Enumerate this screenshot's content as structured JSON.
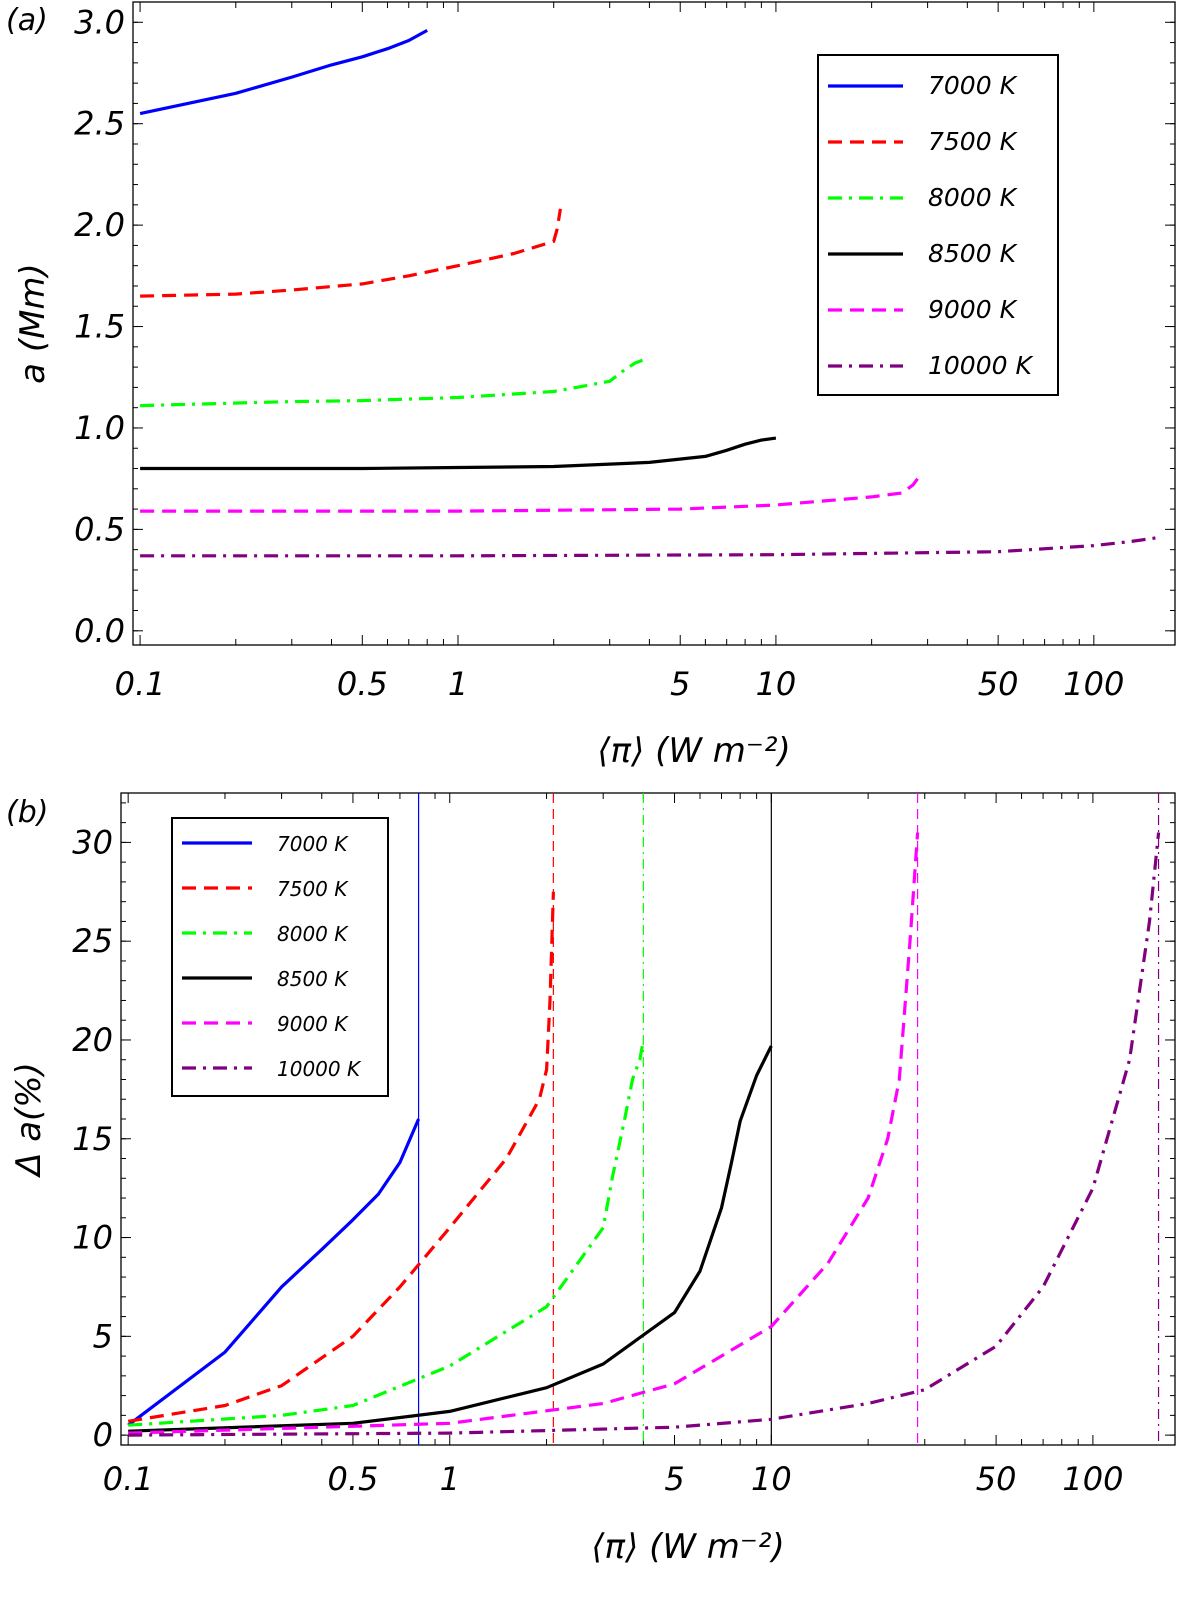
{
  "figure": {
    "background": "#ffffff"
  },
  "series_styles": [
    {
      "name": "7000 K",
      "color": "#0000ff",
      "dash": "solid"
    },
    {
      "name": "7500 K",
      "color": "#ff0000",
      "dash": "dashed"
    },
    {
      "name": "8000 K",
      "color": "#00ff00",
      "dash": "dashdot"
    },
    {
      "name": "8500 K",
      "color": "#000000",
      "dash": "solid"
    },
    {
      "name": "9000 K",
      "color": "#ff00ff",
      "dash": "dashed"
    },
    {
      "name": "10000 K",
      "color": "#800080",
      "dash": "dashdot"
    }
  ],
  "chart_data": [
    {
      "panel": "(a)",
      "type": "line",
      "xlabel": "⟨π⟩ (W m⁻²)",
      "ylabel": "a (Mm)",
      "xscale": "log",
      "xlim": [
        0.095,
        180
      ],
      "ylim": [
        -0.07,
        3.1
      ],
      "xticks": [
        {
          "value": 0.1,
          "label": "0.1"
        },
        {
          "value": 0.5,
          "label": "0.5"
        },
        {
          "value": 1,
          "label": "1"
        },
        {
          "value": 5,
          "label": "5"
        },
        {
          "value": 10,
          "label": "10"
        },
        {
          "value": 50,
          "label": "50"
        },
        {
          "value": 100,
          "label": "100"
        }
      ],
      "yticks": [
        {
          "value": 0.0,
          "label": "0.0"
        },
        {
          "value": 0.5,
          "label": "0.5"
        },
        {
          "value": 1.0,
          "label": "1.0"
        },
        {
          "value": 1.5,
          "label": "1.5"
        },
        {
          "value": 2.0,
          "label": "2.0"
        },
        {
          "value": 2.5,
          "label": "2.5"
        },
        {
          "value": 3.0,
          "label": "3.0"
        }
      ],
      "legend_position": "top-right",
      "series": [
        {
          "name": "7000 K",
          "x": [
            0.1,
            0.2,
            0.3,
            0.4,
            0.5,
            0.6,
            0.7,
            0.8
          ],
          "y": [
            2.55,
            2.65,
            2.73,
            2.79,
            2.83,
            2.87,
            2.91,
            2.96
          ]
        },
        {
          "name": "7500 K",
          "x": [
            0.1,
            0.2,
            0.3,
            0.5,
            0.7,
            1.0,
            1.5,
            2.0,
            2.05,
            2.1
          ],
          "y": [
            1.65,
            1.66,
            1.68,
            1.71,
            1.75,
            1.8,
            1.86,
            1.92,
            1.98,
            2.08
          ]
        },
        {
          "name": "8000 K",
          "x": [
            0.1,
            0.3,
            0.5,
            1.0,
            2.0,
            3.0,
            3.3,
            3.6,
            3.9
          ],
          "y": [
            1.11,
            1.13,
            1.135,
            1.15,
            1.18,
            1.23,
            1.28,
            1.32,
            1.34
          ]
        },
        {
          "name": "8500 K",
          "x": [
            0.1,
            0.5,
            1.0,
            2.0,
            4.0,
            6.0,
            7.0,
            8.0,
            9.0,
            10.0
          ],
          "y": [
            0.8,
            0.8,
            0.805,
            0.81,
            0.83,
            0.86,
            0.89,
            0.92,
            0.94,
            0.95
          ]
        },
        {
          "name": "9000 K",
          "x": [
            0.1,
            1.0,
            5.0,
            10.0,
            20.0,
            25.0,
            27.0,
            28.5
          ],
          "y": [
            0.59,
            0.59,
            0.6,
            0.62,
            0.66,
            0.68,
            0.72,
            0.77
          ]
        },
        {
          "name": "10000 K",
          "x": [
            0.1,
            1.0,
            10.0,
            50.0,
            100.0,
            130.0,
            160.0
          ],
          "y": [
            0.37,
            0.37,
            0.375,
            0.39,
            0.42,
            0.44,
            0.46
          ]
        }
      ]
    },
    {
      "panel": "(b)",
      "type": "line",
      "xlabel": "⟨π⟩ (W m⁻²)",
      "ylabel": "Δ a(%)",
      "xscale": "log",
      "xlim": [
        0.095,
        180
      ],
      "ylim": [
        -0.5,
        32.5
      ],
      "xticks": [
        {
          "value": 0.1,
          "label": "0.1"
        },
        {
          "value": 0.5,
          "label": "0.5"
        },
        {
          "value": 1,
          "label": "1"
        },
        {
          "value": 5,
          "label": "5"
        },
        {
          "value": 10,
          "label": "10"
        },
        {
          "value": 50,
          "label": "50"
        },
        {
          "value": 100,
          "label": "100"
        }
      ],
      "yticks": [
        {
          "value": 0,
          "label": "0"
        },
        {
          "value": 5,
          "label": "5"
        },
        {
          "value": 10,
          "label": "10"
        },
        {
          "value": 15,
          "label": "15"
        },
        {
          "value": 20,
          "label": "20"
        },
        {
          "value": 25,
          "label": "25"
        },
        {
          "value": 30,
          "label": "30"
        }
      ],
      "legend_position": "top-left",
      "vertical_lines": [
        {
          "name": "7000 K",
          "x": 0.8
        },
        {
          "name": "7500 K",
          "x": 2.1
        },
        {
          "name": "8000 K",
          "x": 4.0
        },
        {
          "name": "8500 K",
          "x": 10.0
        },
        {
          "name": "9000 K",
          "x": 28.5
        },
        {
          "name": "10000 K",
          "x": 160.0
        }
      ],
      "series": [
        {
          "name": "7000 K",
          "x": [
            0.1,
            0.2,
            0.3,
            0.4,
            0.5,
            0.6,
            0.7,
            0.8
          ],
          "y": [
            0.5,
            4.2,
            7.5,
            9.4,
            10.9,
            12.2,
            13.8,
            16.0
          ]
        },
        {
          "name": "7500 K",
          "x": [
            0.1,
            0.2,
            0.3,
            0.5,
            0.7,
            1.0,
            1.5,
            1.9,
            2.0,
            2.05,
            2.1
          ],
          "y": [
            0.7,
            1.5,
            2.5,
            5.0,
            7.5,
            10.5,
            14.0,
            17.0,
            18.5,
            22.0,
            27.5
          ]
        },
        {
          "name": "8000 K",
          "x": [
            0.1,
            0.3,
            0.5,
            1.0,
            2.0,
            3.0,
            3.2,
            3.5,
            3.7,
            3.9,
            4.0
          ],
          "y": [
            0.5,
            1.0,
            1.5,
            3.5,
            6.5,
            10.5,
            13.0,
            16.0,
            18.0,
            19.0,
            20.0
          ]
        },
        {
          "name": "8500 K",
          "x": [
            0.1,
            0.5,
            1.0,
            2.0,
            3.0,
            5.0,
            6.0,
            7.0,
            7.5,
            8.0,
            9.0,
            10.0
          ],
          "y": [
            0.2,
            0.6,
            1.2,
            2.4,
            3.6,
            6.2,
            8.3,
            11.5,
            13.7,
            15.9,
            18.2,
            19.7
          ]
        },
        {
          "name": "9000 K",
          "x": [
            0.1,
            1.0,
            3.0,
            5.0,
            10.0,
            15.0,
            20.0,
            23.0,
            25.0,
            27.0,
            28.5
          ],
          "y": [
            0.1,
            0.6,
            1.6,
            2.6,
            5.5,
            8.7,
            12.0,
            15.0,
            18.0,
            25.0,
            30.5
          ]
        },
        {
          "name": "10000 K",
          "x": [
            0.1,
            1.0,
            5.0,
            10.0,
            20.0,
            30.0,
            50.0,
            70.0,
            100.0,
            130.0,
            150.0,
            160.0
          ],
          "y": [
            0.0,
            0.1,
            0.4,
            0.8,
            1.6,
            2.3,
            4.5,
            7.5,
            12.5,
            19.0,
            26.0,
            30.5
          ]
        }
      ]
    }
  ]
}
